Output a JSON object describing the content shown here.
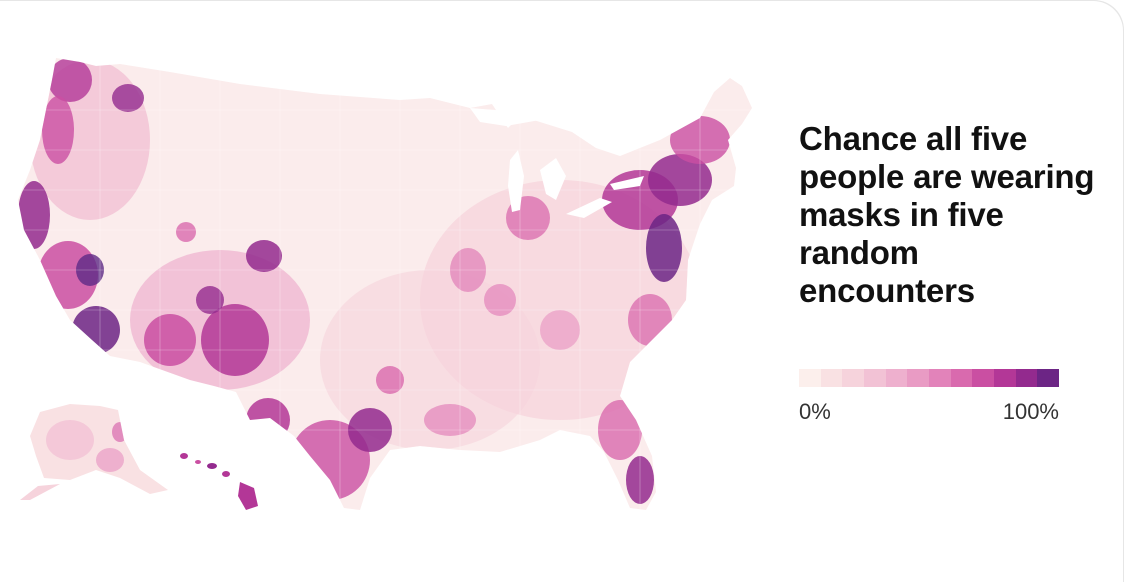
{
  "map": {
    "title": "Chance all five people are wearing masks in five random encounters",
    "colors": {
      "lightest": "#fbecec",
      "darkest": "#5e2a86",
      "accent": "#b4258f"
    },
    "legend": {
      "min_label": "0%",
      "max_label": "100%",
      "scale": [
        "#fcefec",
        "#f9e1e3",
        "#f6d3dc",
        "#f2c2d5",
        "#eeb0ce",
        "#e99bc4",
        "#e283ba",
        "#d96aae",
        "#ca4fa2",
        "#b33797",
        "#932a8e",
        "#6c2585"
      ]
    },
    "regions": [
      "contiguous-us",
      "alaska",
      "hawaii"
    ]
  }
}
